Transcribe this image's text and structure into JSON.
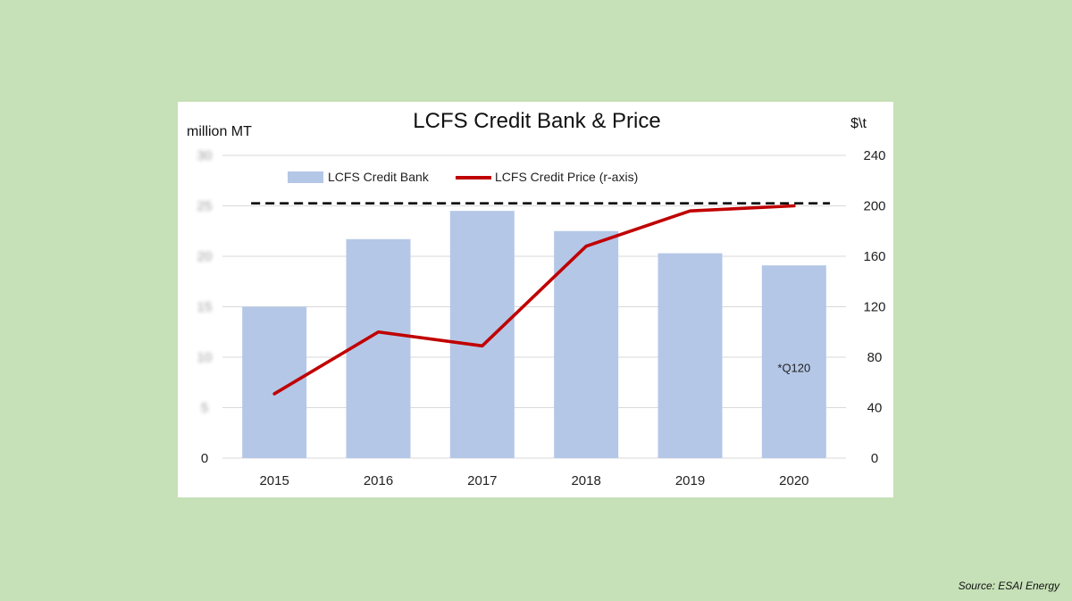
{
  "chart_data": {
    "type": "bar",
    "title": "LCFS Credit Bank & Price",
    "left_axis_label": "million MT",
    "right_axis_label": "$\\t",
    "categories": [
      "2015",
      "2016",
      "2017",
      "2018",
      "2019",
      "2020"
    ],
    "series": [
      {
        "name": "LCFS Credit Bank",
        "kind": "bar",
        "axis": "left",
        "color": "#b4c7e7",
        "values": [
          15,
          21.7,
          24.5,
          22.5,
          20.3,
          19.1
        ]
      },
      {
        "name": "LCFS Credit Price (r-axis)",
        "kind": "line",
        "axis": "right",
        "color": "#c00000",
        "values": [
          51,
          100,
          89,
          168,
          196,
          200
        ]
      }
    ],
    "right_axis": {
      "min": 0,
      "max": 240,
      "ticks": [
        "0",
        "40",
        "80",
        "120",
        "160",
        "200",
        "240"
      ]
    },
    "left_axis": {
      "min": 0,
      "max": 30,
      "ticks": [
        "0",
        "5",
        "10",
        "15",
        "20",
        "25",
        "30"
      ],
      "ticks_blurred": true
    },
    "reference_line": {
      "axis": "right",
      "value": 202,
      "style": "dashed",
      "color": "#000000"
    },
    "annotation": {
      "text": "*Q120",
      "category": "2020",
      "value_right_axis": 71
    },
    "legend_placement": "top",
    "grid": true
  },
  "source": "Source: ESAI Energy"
}
